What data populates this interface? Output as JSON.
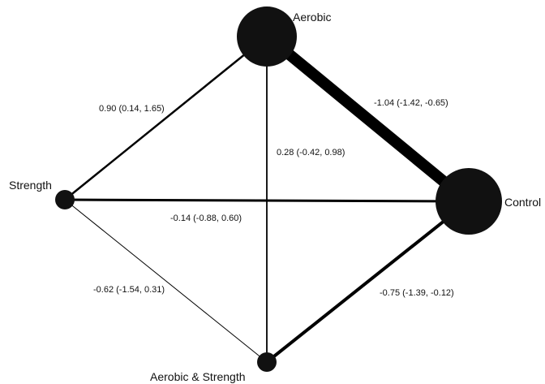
{
  "nodes": {
    "aerobic": {
      "label": "Aerobic"
    },
    "control": {
      "label": "Control"
    },
    "strength": {
      "label": "Strength"
    },
    "aerobic_strength": {
      "label": "Aerobic & Strength"
    }
  },
  "edges": {
    "aerobic_strength": {
      "label": "0.90 (0.14, 1.65)"
    },
    "aerobic_control": {
      "label": "-1.04 (-1.42, -0.65)"
    },
    "aerobic_aerobicstrength": {
      "label": "0.28 (-0.42, 0.98)"
    },
    "strength_control": {
      "label": "-0.14 (-0.88, 0.60)"
    },
    "strength_aerobicstrength": {
      "label": "-0.62 (-1.54, 0.31)"
    },
    "control_aerobicstrength": {
      "label": "-0.75 (-1.39, -0.12)"
    }
  }
}
